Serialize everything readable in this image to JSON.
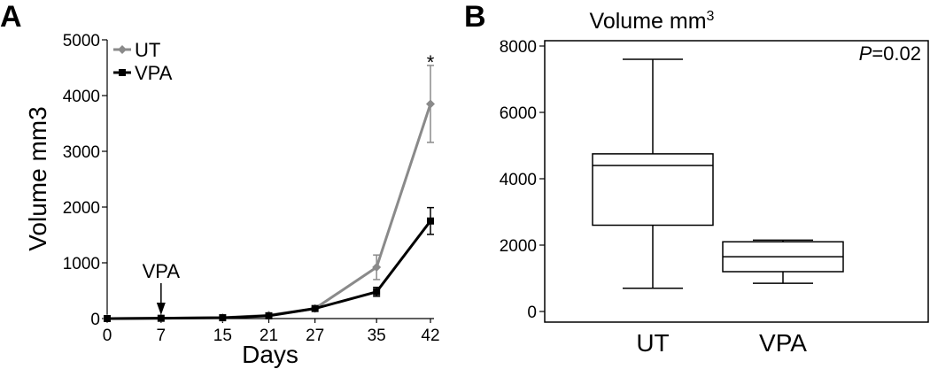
{
  "chart_data": [
    {
      "panel": "A",
      "type": "line",
      "xlabel": "Days",
      "ylabel": "Volume mm3",
      "x": [
        0,
        7,
        15,
        21,
        27,
        35,
        42
      ],
      "x_ticks": [
        "0",
        "7",
        "15",
        "21",
        "27",
        "35",
        "42"
      ],
      "ylim": [
        0,
        5000
      ],
      "y_ticks": [
        "0",
        "1000",
        "2000",
        "3000",
        "4000",
        "5000"
      ],
      "legend_position": "top-left",
      "series": [
        {
          "name": "UT",
          "color": "#8a8a8a",
          "marker": "diamond",
          "values": [
            0,
            5,
            15,
            60,
            180,
            920,
            3850
          ],
          "error": [
            0,
            0,
            0,
            0,
            0,
            220,
            690
          ]
        },
        {
          "name": "VPA",
          "color": "#000000",
          "marker": "square",
          "values": [
            0,
            5,
            15,
            50,
            180,
            480,
            1750
          ],
          "error": [
            0,
            0,
            0,
            0,
            0,
            80,
            240
          ]
        }
      ],
      "annotations": [
        {
          "text": "VPA",
          "x": 7,
          "kind": "arrow-marker"
        },
        {
          "text": "*",
          "x": 42,
          "kind": "significance"
        }
      ]
    },
    {
      "panel": "B",
      "type": "box",
      "title": "Volume mm",
      "title_superscript": "3",
      "categories": [
        "UT",
        "VPA"
      ],
      "ylim": [
        0,
        8000
      ],
      "y_ticks": [
        "0",
        "2000",
        "4000",
        "6000",
        "8000"
      ],
      "p_value": {
        "label": "P",
        "value": "=0.02"
      },
      "boxes": [
        {
          "name": "UT",
          "min": 700,
          "q1": 2600,
          "median": 4400,
          "q3": 4750,
          "max": 7600
        },
        {
          "name": "VPA",
          "min": 850,
          "q1": 1200,
          "median": 1650,
          "q3": 2100,
          "max": 2150
        }
      ]
    }
  ]
}
